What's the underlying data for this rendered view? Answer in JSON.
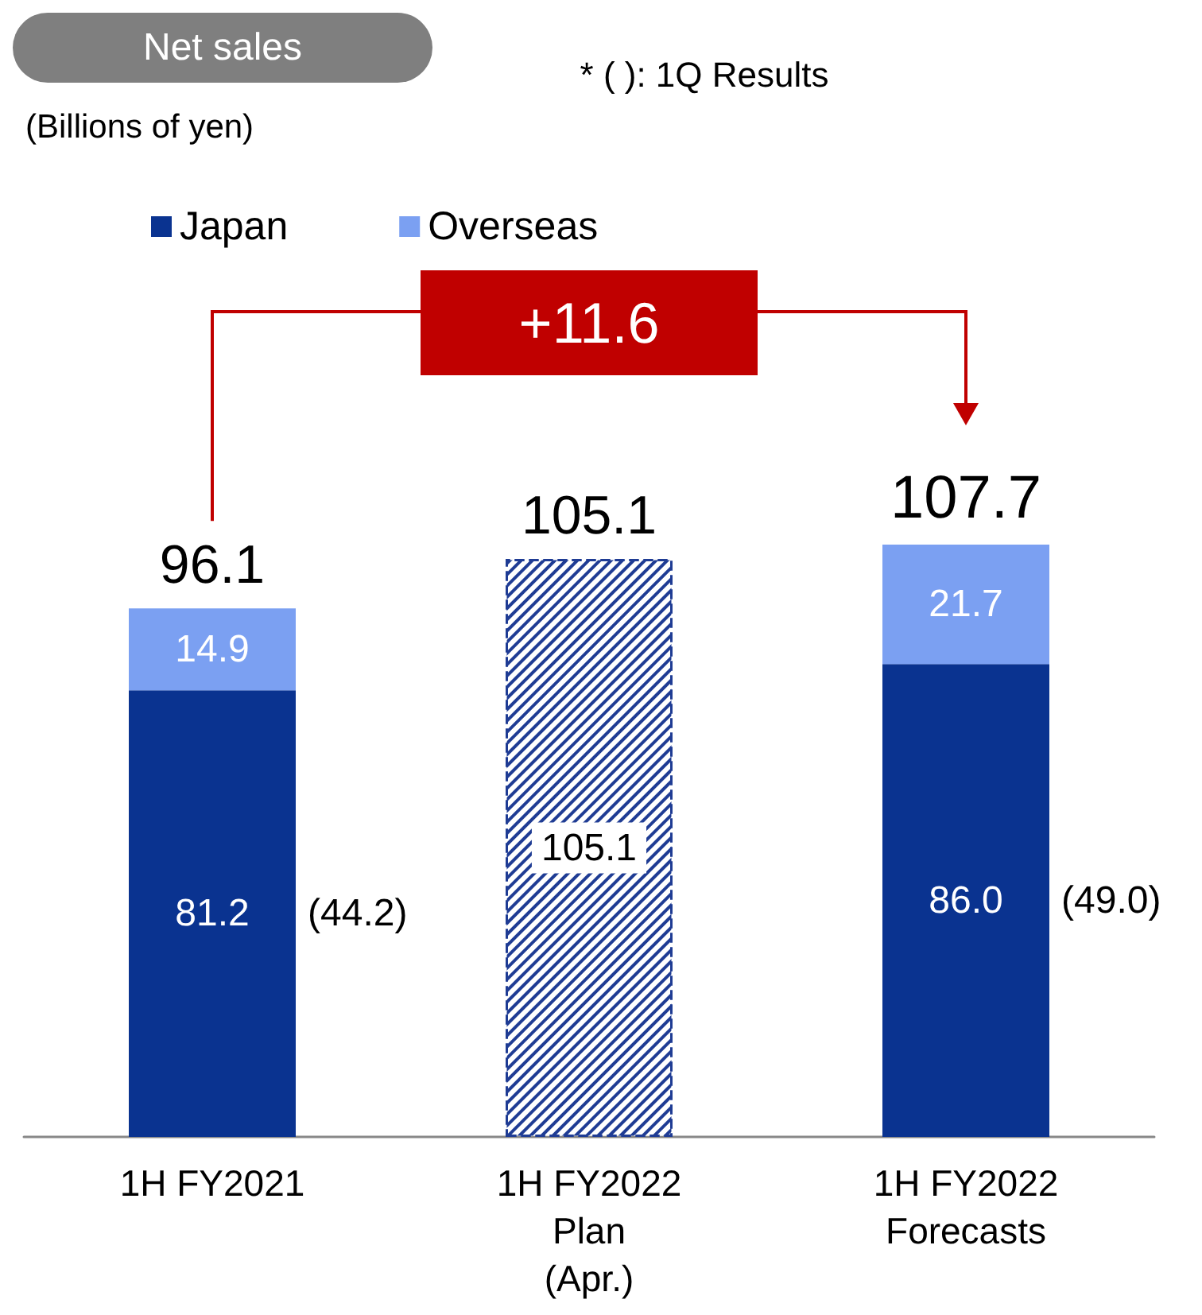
{
  "chart_data": {
    "type": "bar",
    "title": "Net sales",
    "subtitle": "(Billions of yen)",
    "categories": [
      "1H FY2021",
      "1H FY2022\nPlan\n(Apr.)",
      "1H FY2022\nForecasts"
    ],
    "stacked": true,
    "legend": "top left",
    "series": [
      {
        "name": "Japan",
        "color": "#0a3390",
        "values": [
          81.2,
          null,
          86.0
        ],
        "value_labels": [
          "81.2",
          null,
          "86.0"
        ]
      },
      {
        "name": "Overseas",
        "color": "#7ba0f2",
        "values": [
          14.9,
          null,
          21.7
        ],
        "value_labels": [
          "14.9",
          null,
          "21.7"
        ]
      },
      {
        "color": "#1f3c94",
        "values": [
          null,
          105.1,
          null
        ],
        "value_labels": [
          null,
          "105.1",
          null
        ]
      }
    ],
    "totals": [
      "96.1",
      "105.1",
      "107.7"
    ],
    "annotations": [
      "* ( ): 1Q Results",
      "(44.2)",
      "(49.0)",
      "+11.6"
    ]
  }
}
